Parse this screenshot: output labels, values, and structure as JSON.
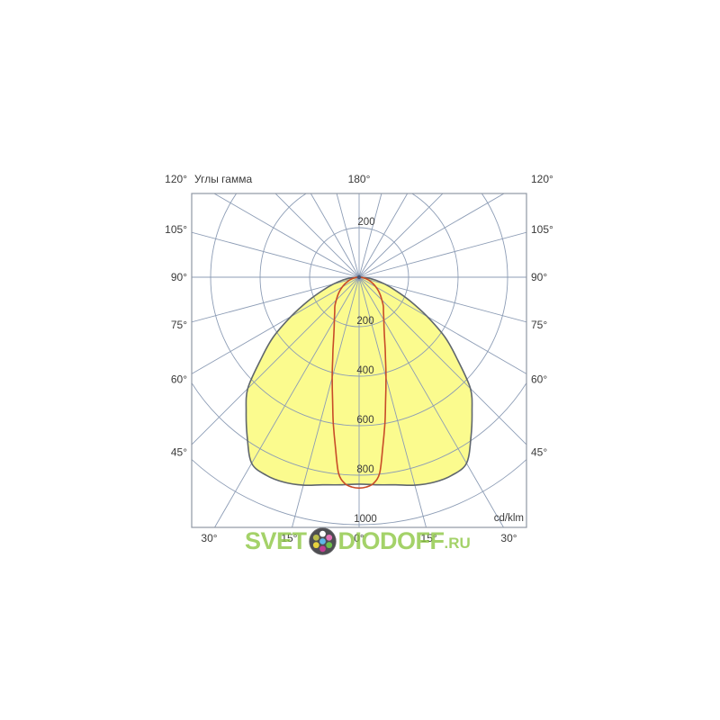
{
  "chart_data": {
    "type": "polar",
    "title": "Углы гамма",
    "top_label": "180°",
    "corner_label": "120°",
    "side_labels": [
      {
        "angle": 105,
        "label": "105°"
      },
      {
        "angle": 90,
        "label": "90°"
      },
      {
        "angle": 75,
        "label": "75°"
      },
      {
        "angle": 60,
        "label": "60°"
      },
      {
        "angle": 45,
        "label": "45°"
      }
    ],
    "bottom_labels": [
      {
        "angle": -30,
        "label": "30°"
      },
      {
        "angle": -15,
        "label": "15°"
      },
      {
        "angle": 0,
        "label": "0°"
      },
      {
        "angle": 15,
        "label": "15°"
      },
      {
        "angle": 30,
        "label": "30°"
      }
    ],
    "radial_ticks": [
      200,
      400,
      600,
      800,
      1000
    ],
    "radial_unit": "cd/klm",
    "ray_step_deg": 15,
    "grid_on": true,
    "colors": {
      "grid": "#8c9cb5",
      "frame": "#9098a4",
      "text": "#3a3a3a",
      "center_dot": "#4a5470"
    },
    "series": [
      {
        "name": "wide-beam-lobe",
        "style": "filled",
        "fill": "#fbfb8e",
        "stroke": "#5f666d",
        "symmetric": true,
        "points": [
          [
            0,
            836
          ],
          [
            5,
            842
          ],
          [
            10,
            852
          ],
          [
            15,
            870
          ],
          [
            20,
            882
          ],
          [
            25,
            884
          ],
          [
            30,
            868
          ],
          [
            35,
            788
          ],
          [
            40,
            710
          ],
          [
            45,
            636
          ],
          [
            50,
            520
          ],
          [
            55,
            425
          ],
          [
            60,
            318
          ],
          [
            65,
            228
          ],
          [
            70,
            158
          ],
          [
            75,
            108
          ],
          [
            80,
            68
          ],
          [
            85,
            34
          ],
          [
            90,
            0
          ]
        ]
      },
      {
        "name": "narrow-beam-lobe",
        "style": "line",
        "stroke": "#c84b28",
        "symmetric": true,
        "points": [
          [
            0,
            852
          ],
          [
            2,
            848
          ],
          [
            4,
            835
          ],
          [
            6,
            795
          ],
          [
            8,
            690
          ],
          [
            10,
            600
          ],
          [
            12,
            515
          ],
          [
            15,
            420
          ],
          [
            18,
            345
          ],
          [
            20,
            308
          ],
          [
            25,
            240
          ],
          [
            30,
            200
          ],
          [
            35,
            172
          ],
          [
            40,
            152
          ],
          [
            45,
            130
          ],
          [
            50,
            112
          ],
          [
            55,
            95
          ],
          [
            60,
            78
          ],
          [
            65,
            62
          ],
          [
            70,
            48
          ],
          [
            75,
            36
          ],
          [
            80,
            24
          ],
          [
            85,
            12
          ],
          [
            90,
            0
          ]
        ]
      }
    ]
  },
  "watermark": {
    "part1": "SVET",
    "part2": "DIODOFF",
    "part3": ".RU",
    "text_color": "#8bc53f",
    "logo_bg": "#4e4e52",
    "logo_center_dot": "#5fb6e8",
    "logo_dots": [
      "#ffffff",
      "#e473b8",
      "#6cbf4a",
      "#c13e92",
      "#e6d23e",
      "#b9bc49"
    ]
  }
}
